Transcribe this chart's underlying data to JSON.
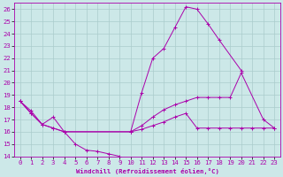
{
  "xlabel": "Windchill (Refroidissement éolien,°C)",
  "xlim": [
    -0.5,
    23.5
  ],
  "ylim": [
    14,
    26.5
  ],
  "xticks": [
    0,
    1,
    2,
    3,
    4,
    5,
    6,
    7,
    8,
    9,
    10,
    11,
    12,
    13,
    14,
    15,
    16,
    17,
    18,
    19,
    20,
    21,
    22,
    23
  ],
  "yticks": [
    14,
    15,
    16,
    17,
    18,
    19,
    20,
    21,
    22,
    23,
    24,
    25,
    26
  ],
  "bg_color": "#cce8e8",
  "grid_color": "#aacccc",
  "line_color": "#aa00aa",
  "lines": [
    {
      "x": [
        0,
        1,
        2,
        3,
        4,
        5,
        6,
        7,
        8,
        9
      ],
      "y": [
        18.5,
        17.7,
        16.6,
        17.2,
        16.0,
        15.0,
        14.5,
        14.4,
        14.2,
        14.0
      ]
    },
    {
      "x": [
        0,
        1,
        2,
        3,
        4,
        10,
        11,
        12,
        13,
        14,
        15,
        16,
        17,
        18,
        19,
        20,
        21,
        22,
        23
      ],
      "y": [
        18.5,
        17.5,
        16.6,
        16.3,
        16.0,
        16.0,
        16.2,
        16.5,
        16.8,
        17.2,
        17.5,
        16.3,
        16.3,
        16.3,
        16.3,
        16.3,
        16.3,
        16.3,
        16.3
      ]
    },
    {
      "x": [
        10,
        11,
        12,
        13,
        14,
        15,
        16,
        17,
        18,
        20
      ],
      "y": [
        16.0,
        19.2,
        22.0,
        22.8,
        24.5,
        26.2,
        26.0,
        24.8,
        23.5,
        21.0
      ]
    },
    {
      "x": [
        0,
        1,
        2,
        3,
        4,
        10,
        11,
        12,
        13,
        14,
        15,
        16,
        17,
        18,
        19,
        20,
        22,
        23
      ],
      "y": [
        18.5,
        17.5,
        16.6,
        16.3,
        16.0,
        16.0,
        16.5,
        17.2,
        17.8,
        18.2,
        18.5,
        18.8,
        18.8,
        18.8,
        18.8,
        20.8,
        17.0,
        16.3
      ]
    }
  ]
}
